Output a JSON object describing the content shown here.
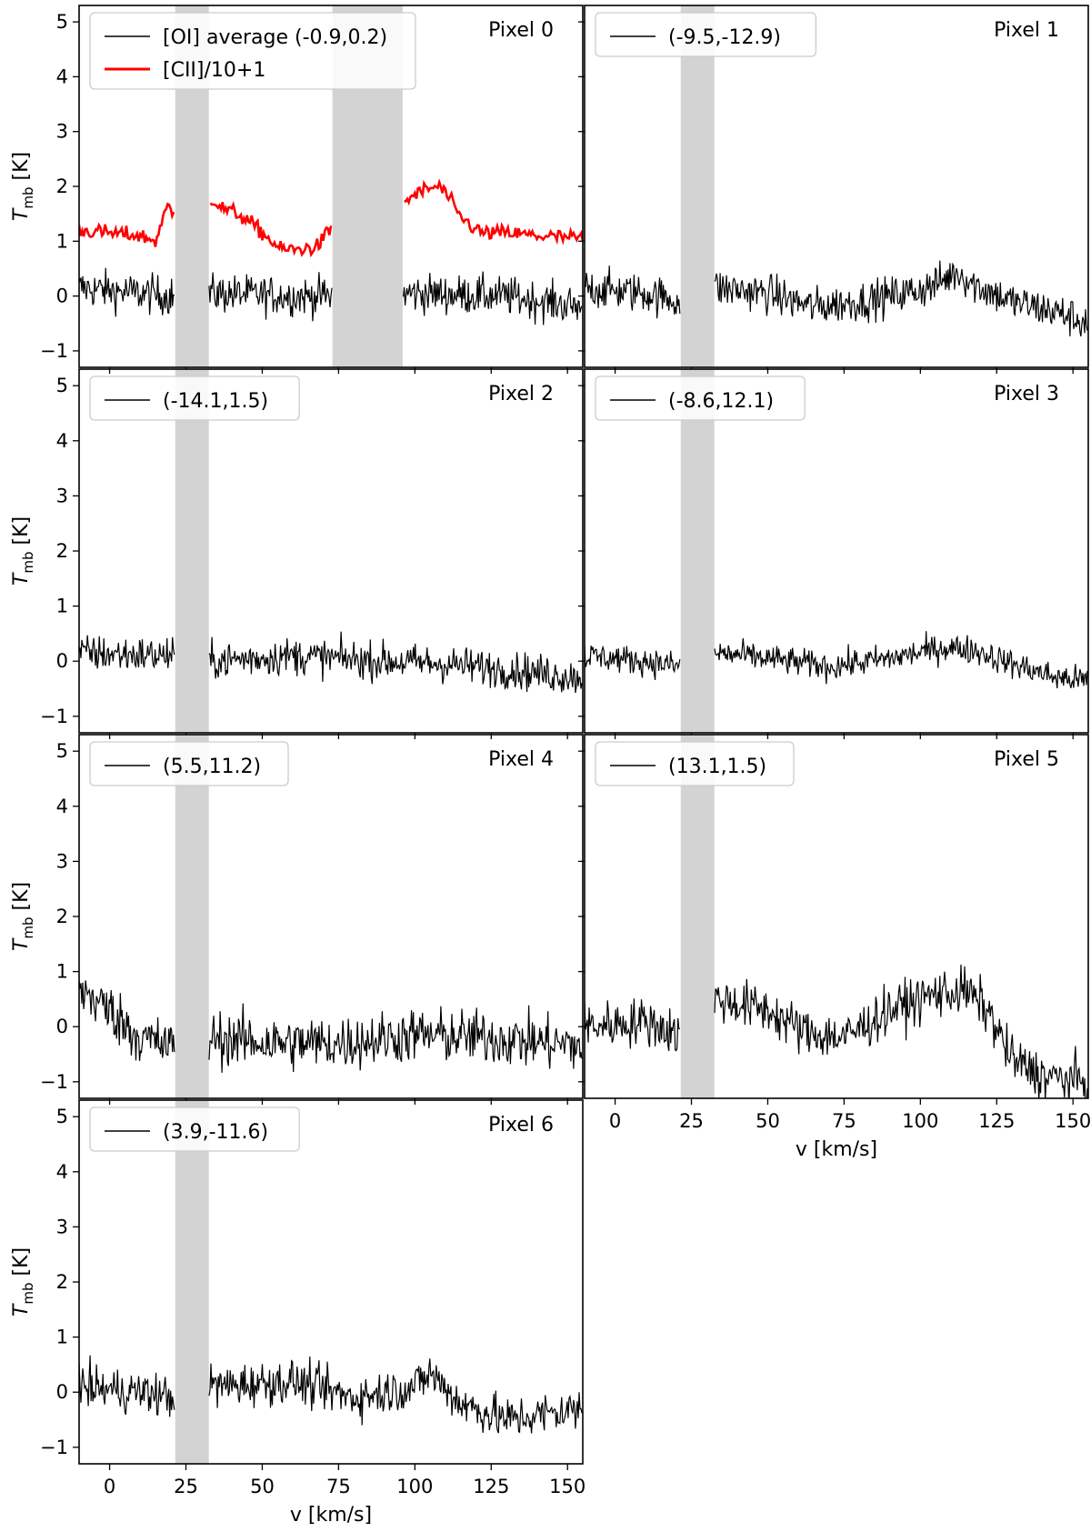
{
  "chart_data": {
    "type": "line",
    "xlabel": "v [km/s]",
    "ylabel": "T",
    "ylabel_sub": "mb",
    "ylabel_unit": " [K]",
    "xlim": [
      -10,
      155
    ],
    "ylim": [
      -1.3,
      5.3
    ],
    "xticks": [
      0,
      25,
      50,
      75,
      100,
      125,
      150
    ],
    "yticks": [
      -1,
      0,
      1,
      2,
      3,
      4,
      5
    ],
    "colors": {
      "oi": "#000000",
      "cii": "#ff0000",
      "band": "#d3d3d3"
    },
    "panels": [
      {
        "pixel_label": "Pixel 0",
        "legend": [
          "[OI] average (-0.9,0.2)",
          "[CII]/10+1"
        ],
        "masks": [
          [
            21.5,
            32.5
          ],
          [
            73,
            96
          ]
        ],
        "baseline": [
          [
            -10,
            0.15
          ],
          [
            0,
            0.1
          ],
          [
            20,
            0.0
          ],
          [
            35,
            0.05
          ],
          [
            60,
            0.0
          ],
          [
            75,
            0.0
          ],
          [
            100,
            0.05
          ],
          [
            130,
            0.0
          ],
          [
            155,
            -0.2
          ]
        ],
        "noise": 0.18,
        "cii": [
          [
            -10,
            1.2
          ],
          [
            0,
            1.15
          ],
          [
            10,
            1.1
          ],
          [
            15,
            1.0
          ],
          [
            17,
            1.3
          ],
          [
            19,
            1.65
          ],
          [
            21,
            1.5
          ],
          [
            24,
            1.3
          ],
          [
            27,
            1.55
          ],
          [
            30,
            1.85
          ],
          [
            33,
            1.8
          ],
          [
            37,
            1.6
          ],
          [
            42,
            1.5
          ],
          [
            47,
            1.3
          ],
          [
            52,
            1.05
          ],
          [
            56,
            0.85
          ],
          [
            62,
            0.85
          ],
          [
            68,
            0.9
          ],
          [
            72,
            1.2
          ],
          [
            96,
            1.7
          ],
          [
            100,
            1.85
          ],
          [
            104,
            1.95
          ],
          [
            108,
            2.0
          ],
          [
            111,
            1.8
          ],
          [
            114,
            1.5
          ],
          [
            118,
            1.3
          ],
          [
            122,
            1.15
          ],
          [
            130,
            1.15
          ],
          [
            140,
            1.1
          ],
          [
            155,
            1.05
          ]
        ],
        "cii_noise": 0.07
      },
      {
        "pixel_label": "Pixel 1",
        "legend": [
          "(-9.5,-12.9)"
        ],
        "masks": [
          [
            21.5,
            32.5
          ]
        ],
        "baseline": [
          [
            -10,
            0.15
          ],
          [
            10,
            0.05
          ],
          [
            22,
            -0.1
          ],
          [
            33,
            0.15
          ],
          [
            50,
            0.05
          ],
          [
            65,
            -0.2
          ],
          [
            80,
            -0.1
          ],
          [
            95,
            0.05
          ],
          [
            105,
            0.2
          ],
          [
            112,
            0.45
          ],
          [
            118,
            0.2
          ],
          [
            130,
            -0.1
          ],
          [
            145,
            -0.3
          ],
          [
            155,
            -0.5
          ]
        ],
        "noise": 0.18
      },
      {
        "pixel_label": "Pixel 2",
        "legend": [
          "(-14.1,1.5)"
        ],
        "masks": [
          [
            21.5,
            32.5
          ]
        ],
        "baseline": [
          [
            -10,
            0.15
          ],
          [
            20,
            0.1
          ],
          [
            33,
            0.0
          ],
          [
            60,
            0.1
          ],
          [
            90,
            0.0
          ],
          [
            110,
            -0.05
          ],
          [
            130,
            -0.15
          ],
          [
            155,
            -0.3
          ]
        ],
        "noise": 0.17
      },
      {
        "pixel_label": "Pixel 3",
        "legend": [
          "(-8.6,12.1)"
        ],
        "masks": [
          [
            21.5,
            32.5
          ]
        ],
        "baseline": [
          [
            -10,
            0.1
          ],
          [
            10,
            0.0
          ],
          [
            22,
            -0.1
          ],
          [
            33,
            0.15
          ],
          [
            50,
            0.05
          ],
          [
            70,
            -0.1
          ],
          [
            90,
            0.05
          ],
          [
            108,
            0.25
          ],
          [
            118,
            0.2
          ],
          [
            130,
            -0.05
          ],
          [
            145,
            -0.3
          ],
          [
            155,
            -0.35
          ]
        ],
        "noise": 0.13
      },
      {
        "pixel_label": "Pixel 4",
        "legend": [
          "(5.5,11.2)"
        ],
        "masks": [
          [
            21.5,
            32.5
          ]
        ],
        "baseline": [
          [
            -10,
            0.7
          ],
          [
            0,
            0.3
          ],
          [
            10,
            -0.2
          ],
          [
            22,
            -0.4
          ],
          [
            33,
            -0.2
          ],
          [
            55,
            -0.3
          ],
          [
            75,
            -0.3
          ],
          [
            100,
            -0.15
          ],
          [
            125,
            -0.2
          ],
          [
            155,
            -0.35
          ]
        ],
        "noise": 0.25
      },
      {
        "pixel_label": "Pixel 5",
        "legend": [
          "(13.1,1.5)"
        ],
        "masks": [
          [
            21.5,
            32.5
          ]
        ],
        "baseline": [
          [
            -10,
            0.0
          ],
          [
            10,
            0.1
          ],
          [
            22,
            -0.15
          ],
          [
            33,
            0.5
          ],
          [
            50,
            0.3
          ],
          [
            62,
            -0.1
          ],
          [
            75,
            -0.2
          ],
          [
            90,
            0.3
          ],
          [
            105,
            0.6
          ],
          [
            115,
            0.65
          ],
          [
            122,
            0.3
          ],
          [
            130,
            -0.6
          ],
          [
            140,
            -0.9
          ],
          [
            155,
            -1.0
          ]
        ],
        "noise": 0.22
      },
      {
        "pixel_label": "Pixel 6",
        "legend": [
          "(3.9,-11.6)"
        ],
        "masks": [
          [
            21.5,
            32.5
          ]
        ],
        "baseline": [
          [
            -10,
            0.1
          ],
          [
            10,
            0.0
          ],
          [
            22,
            -0.1
          ],
          [
            33,
            0.1
          ],
          [
            60,
            0.2
          ],
          [
            80,
            -0.1
          ],
          [
            100,
            0.1
          ],
          [
            105,
            0.35
          ],
          [
            115,
            -0.2
          ],
          [
            130,
            -0.5
          ],
          [
            155,
            -0.3
          ]
        ],
        "noise": 0.2
      }
    ]
  }
}
